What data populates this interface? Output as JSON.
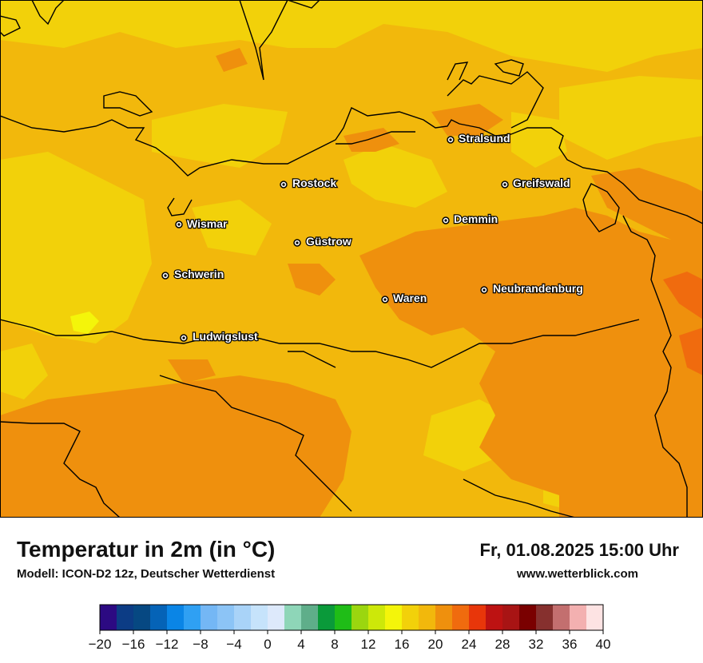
{
  "map": {
    "title": "Temperatur in 2m (in °C)",
    "subtitle": "Modell: ICON-D2 12z, Deutscher Wetterdienst",
    "datetime": "Fr, 01.08.2025 15:00 Uhr",
    "website": "www.wetterblick.com",
    "cities": [
      {
        "name": "Stralsund"
      },
      {
        "name": "Rostock"
      },
      {
        "name": "Greifswald"
      },
      {
        "name": "Wismar"
      },
      {
        "name": "Demmin"
      },
      {
        "name": "Güstrow"
      },
      {
        "name": "Schwerin"
      },
      {
        "name": "Neubrandenburg"
      },
      {
        "name": "Waren"
      },
      {
        "name": "Ludwigslust"
      }
    ]
  },
  "legend": {
    "colors": [
      "#2c0a82",
      "#0c3c85",
      "#064882",
      "#0563b7",
      "#0a85e6",
      "#2fa0f3",
      "#74b7f5",
      "#8cc4f6",
      "#a9d3f8",
      "#c6e3fb",
      "#dde9fb",
      "#8ed6b8",
      "#5fae8a",
      "#0a9a3a",
      "#1fbd17",
      "#9bd60f",
      "#cde809",
      "#f4f50a",
      "#f2d10a",
      "#f2b80c",
      "#ef900d",
      "#f06b0e",
      "#e8360a",
      "#bd1212",
      "#a81414",
      "#7a0000",
      "#86302e",
      "#c36f6f",
      "#f3b0b0",
      "#fde3e3"
    ],
    "ticks": [
      "−20",
      "−16",
      "−12",
      "−8",
      "−4",
      "0",
      "4",
      "8",
      "12",
      "16",
      "20",
      "24",
      "28",
      "32",
      "36",
      "40"
    ]
  }
}
